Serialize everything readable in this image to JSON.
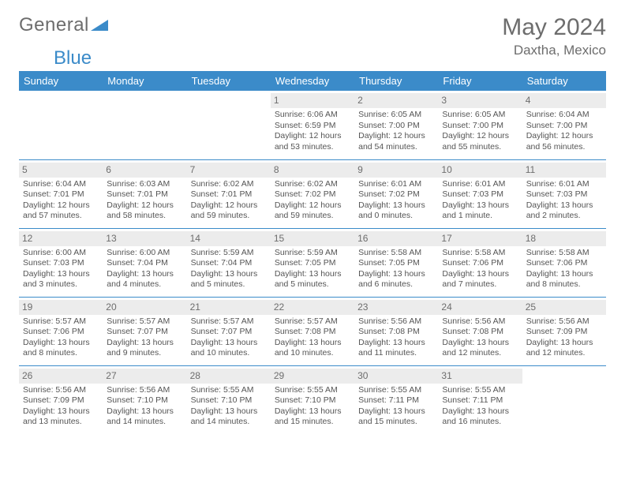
{
  "logo": {
    "text1": "General",
    "text2": "Blue",
    "accent": "#3b8bc9",
    "textcolor": "#6d6d6d"
  },
  "title": "May 2024",
  "location": "Daxtha, Mexico",
  "colors": {
    "header_bg": "#3b8bc9",
    "header_fg": "#ffffff",
    "daynum_bg": "#ececec",
    "rule": "#3b8bc9",
    "body_text": "#555555"
  },
  "day_headers": [
    "Sunday",
    "Monday",
    "Tuesday",
    "Wednesday",
    "Thursday",
    "Friday",
    "Saturday"
  ],
  "type": "table",
  "weeks": [
    [
      {
        "n": "",
        "sr": "",
        "ss": "",
        "dl": ""
      },
      {
        "n": "",
        "sr": "",
        "ss": "",
        "dl": ""
      },
      {
        "n": "",
        "sr": "",
        "ss": "",
        "dl": ""
      },
      {
        "n": "1",
        "sr": "Sunrise: 6:06 AM",
        "ss": "Sunset: 6:59 PM",
        "dl": "Daylight: 12 hours and 53 minutes."
      },
      {
        "n": "2",
        "sr": "Sunrise: 6:05 AM",
        "ss": "Sunset: 7:00 PM",
        "dl": "Daylight: 12 hours and 54 minutes."
      },
      {
        "n": "3",
        "sr": "Sunrise: 6:05 AM",
        "ss": "Sunset: 7:00 PM",
        "dl": "Daylight: 12 hours and 55 minutes."
      },
      {
        "n": "4",
        "sr": "Sunrise: 6:04 AM",
        "ss": "Sunset: 7:00 PM",
        "dl": "Daylight: 12 hours and 56 minutes."
      }
    ],
    [
      {
        "n": "5",
        "sr": "Sunrise: 6:04 AM",
        "ss": "Sunset: 7:01 PM",
        "dl": "Daylight: 12 hours and 57 minutes."
      },
      {
        "n": "6",
        "sr": "Sunrise: 6:03 AM",
        "ss": "Sunset: 7:01 PM",
        "dl": "Daylight: 12 hours and 58 minutes."
      },
      {
        "n": "7",
        "sr": "Sunrise: 6:02 AM",
        "ss": "Sunset: 7:01 PM",
        "dl": "Daylight: 12 hours and 59 minutes."
      },
      {
        "n": "8",
        "sr": "Sunrise: 6:02 AM",
        "ss": "Sunset: 7:02 PM",
        "dl": "Daylight: 12 hours and 59 minutes."
      },
      {
        "n": "9",
        "sr": "Sunrise: 6:01 AM",
        "ss": "Sunset: 7:02 PM",
        "dl": "Daylight: 13 hours and 0 minutes."
      },
      {
        "n": "10",
        "sr": "Sunrise: 6:01 AM",
        "ss": "Sunset: 7:03 PM",
        "dl": "Daylight: 13 hours and 1 minute."
      },
      {
        "n": "11",
        "sr": "Sunrise: 6:01 AM",
        "ss": "Sunset: 7:03 PM",
        "dl": "Daylight: 13 hours and 2 minutes."
      }
    ],
    [
      {
        "n": "12",
        "sr": "Sunrise: 6:00 AM",
        "ss": "Sunset: 7:03 PM",
        "dl": "Daylight: 13 hours and 3 minutes."
      },
      {
        "n": "13",
        "sr": "Sunrise: 6:00 AM",
        "ss": "Sunset: 7:04 PM",
        "dl": "Daylight: 13 hours and 4 minutes."
      },
      {
        "n": "14",
        "sr": "Sunrise: 5:59 AM",
        "ss": "Sunset: 7:04 PM",
        "dl": "Daylight: 13 hours and 5 minutes."
      },
      {
        "n": "15",
        "sr": "Sunrise: 5:59 AM",
        "ss": "Sunset: 7:05 PM",
        "dl": "Daylight: 13 hours and 5 minutes."
      },
      {
        "n": "16",
        "sr": "Sunrise: 5:58 AM",
        "ss": "Sunset: 7:05 PM",
        "dl": "Daylight: 13 hours and 6 minutes."
      },
      {
        "n": "17",
        "sr": "Sunrise: 5:58 AM",
        "ss": "Sunset: 7:06 PM",
        "dl": "Daylight: 13 hours and 7 minutes."
      },
      {
        "n": "18",
        "sr": "Sunrise: 5:58 AM",
        "ss": "Sunset: 7:06 PM",
        "dl": "Daylight: 13 hours and 8 minutes."
      }
    ],
    [
      {
        "n": "19",
        "sr": "Sunrise: 5:57 AM",
        "ss": "Sunset: 7:06 PM",
        "dl": "Daylight: 13 hours and 8 minutes."
      },
      {
        "n": "20",
        "sr": "Sunrise: 5:57 AM",
        "ss": "Sunset: 7:07 PM",
        "dl": "Daylight: 13 hours and 9 minutes."
      },
      {
        "n": "21",
        "sr": "Sunrise: 5:57 AM",
        "ss": "Sunset: 7:07 PM",
        "dl": "Daylight: 13 hours and 10 minutes."
      },
      {
        "n": "22",
        "sr": "Sunrise: 5:57 AM",
        "ss": "Sunset: 7:08 PM",
        "dl": "Daylight: 13 hours and 10 minutes."
      },
      {
        "n": "23",
        "sr": "Sunrise: 5:56 AM",
        "ss": "Sunset: 7:08 PM",
        "dl": "Daylight: 13 hours and 11 minutes."
      },
      {
        "n": "24",
        "sr": "Sunrise: 5:56 AM",
        "ss": "Sunset: 7:08 PM",
        "dl": "Daylight: 13 hours and 12 minutes."
      },
      {
        "n": "25",
        "sr": "Sunrise: 5:56 AM",
        "ss": "Sunset: 7:09 PM",
        "dl": "Daylight: 13 hours and 12 minutes."
      }
    ],
    [
      {
        "n": "26",
        "sr": "Sunrise: 5:56 AM",
        "ss": "Sunset: 7:09 PM",
        "dl": "Daylight: 13 hours and 13 minutes."
      },
      {
        "n": "27",
        "sr": "Sunrise: 5:56 AM",
        "ss": "Sunset: 7:10 PM",
        "dl": "Daylight: 13 hours and 14 minutes."
      },
      {
        "n": "28",
        "sr": "Sunrise: 5:55 AM",
        "ss": "Sunset: 7:10 PM",
        "dl": "Daylight: 13 hours and 14 minutes."
      },
      {
        "n": "29",
        "sr": "Sunrise: 5:55 AM",
        "ss": "Sunset: 7:10 PM",
        "dl": "Daylight: 13 hours and 15 minutes."
      },
      {
        "n": "30",
        "sr": "Sunrise: 5:55 AM",
        "ss": "Sunset: 7:11 PM",
        "dl": "Daylight: 13 hours and 15 minutes."
      },
      {
        "n": "31",
        "sr": "Sunrise: 5:55 AM",
        "ss": "Sunset: 7:11 PM",
        "dl": "Daylight: 13 hours and 16 minutes."
      },
      {
        "n": "",
        "sr": "",
        "ss": "",
        "dl": ""
      }
    ]
  ]
}
